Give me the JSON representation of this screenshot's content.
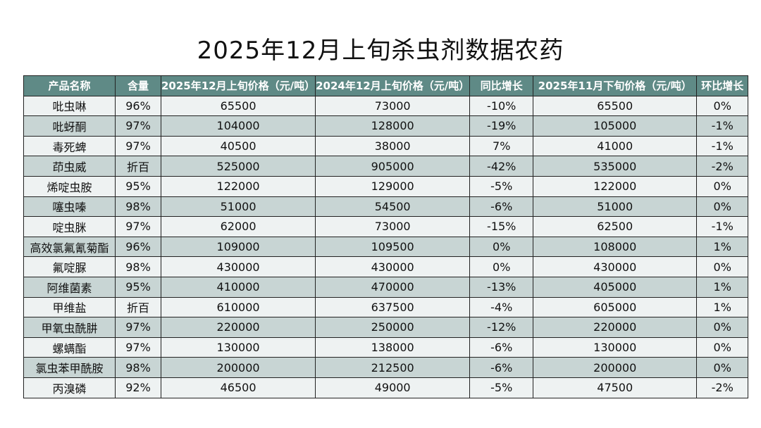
{
  "title": "2025年12月上旬杀虫剂数据农药",
  "table": {
    "header": [
      "产品名称",
      "含量",
      "2025年12月上旬价格（元/吨）",
      "2024年12月上旬价格（元/吨）",
      "同比增长",
      "2025年11月下旬价格（元/吨）",
      "环比增长"
    ],
    "rows": [
      [
        "吡虫啉",
        "96%",
        65500,
        73000,
        "-10%",
        65500,
        "0%"
      ],
      [
        "吡蚜酮",
        "97%",
        104000,
        128000,
        "-19%",
        105000,
        "-1%"
      ],
      [
        "毒死蜱",
        "97%",
        40500,
        38000,
        "7%",
        41000,
        "-1%"
      ],
      [
        "茚虫威",
        "折百",
        525000,
        905000,
        "-42%",
        535000,
        "-2%"
      ],
      [
        "烯啶虫胺",
        "95%",
        122000,
        129000,
        "-5%",
        122000,
        "0%"
      ],
      [
        "噻虫嗪",
        "98%",
        51000,
        54500,
        "-6%",
        51000,
        "0%"
      ],
      [
        "啶虫脒",
        "97%",
        62000,
        73000,
        "-15%",
        62500,
        "-1%"
      ],
      [
        "高效氯氟氰菊酯",
        "96%",
        109000,
        109500,
        "0%",
        108000,
        "1%"
      ],
      [
        "氟啶脲",
        "98%",
        430000,
        430000,
        "0%",
        430000,
        "0%"
      ],
      [
        "阿维菌素",
        "95%",
        410000,
        470000,
        "-13%",
        405000,
        "1%"
      ],
      [
        "甲维盐",
        "折百",
        610000,
        637500,
        "-4%",
        605000,
        "1%"
      ],
      [
        "甲氧虫酰肼",
        "97%",
        220000,
        250000,
        "-12%",
        220000,
        "0%"
      ],
      [
        "螺螨酯",
        "97%",
        130000,
        138000,
        "-6%",
        130000,
        "0%"
      ],
      [
        "氯虫苯甲酰胺",
        "98%",
        200000,
        212500,
        "-6%",
        200000,
        "0%"
      ],
      [
        "丙溴磷",
        "92%",
        46500,
        49000,
        "-5%",
        47500,
        "-2%"
      ]
    ]
  }
}
